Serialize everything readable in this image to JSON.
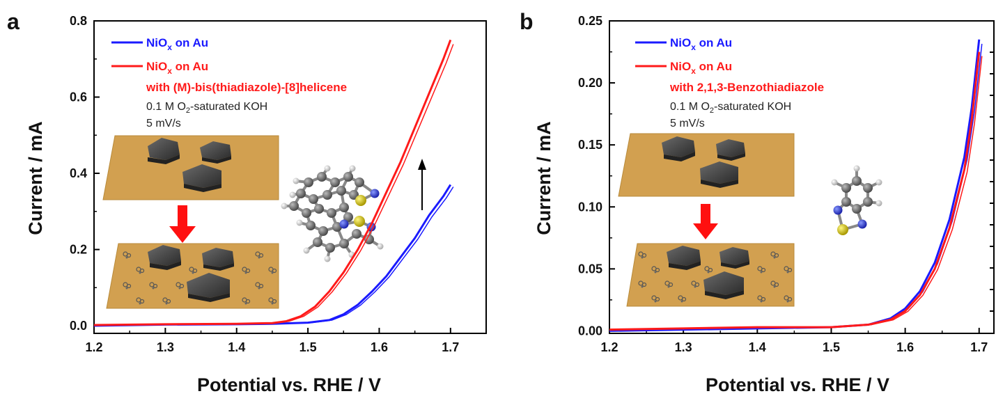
{
  "chart_data": [
    {
      "panel_label": "a",
      "type": "line",
      "xlabel": "Potential vs. RHE / V",
      "ylabel": "Current / mA",
      "xlim": [
        1.2,
        1.75
      ],
      "ylim": [
        -0.02,
        0.8
      ],
      "xticks": [
        "1.2",
        "1.3",
        "1.4",
        "1.5",
        "1.6",
        "1.7"
      ],
      "yticks": [
        "0.0",
        "0.2",
        "0.4",
        "0.6",
        "0.8"
      ],
      "legend_position": "top-left",
      "series": [
        {
          "name": "NiOx on Au",
          "color": "#1a1aff",
          "x": [
            1.2,
            1.3,
            1.4,
            1.45,
            1.5,
            1.53,
            1.55,
            1.57,
            1.59,
            1.61,
            1.63,
            1.65,
            1.67,
            1.69,
            1.7
          ],
          "y": [
            0.0,
            0.003,
            0.004,
            0.005,
            0.008,
            0.015,
            0.03,
            0.055,
            0.09,
            0.13,
            0.18,
            0.23,
            0.29,
            0.34,
            0.37
          ]
        },
        {
          "name": "NiOx on Au with (M)-bis(thiadiazole)-[8]helicene",
          "color": "#ff1a1a",
          "x": [
            1.2,
            1.3,
            1.4,
            1.45,
            1.47,
            1.49,
            1.51,
            1.53,
            1.55,
            1.57,
            1.59,
            1.61,
            1.63,
            1.65,
            1.67,
            1.69,
            1.7
          ],
          "y": [
            0.002,
            0.004,
            0.005,
            0.007,
            0.012,
            0.025,
            0.05,
            0.09,
            0.14,
            0.2,
            0.27,
            0.35,
            0.43,
            0.52,
            0.61,
            0.7,
            0.75
          ]
        }
      ],
      "legend": [
        {
          "main": "NiO",
          "sub": "x",
          "rest": " on Au",
          "color": "#1a1aff"
        },
        {
          "main": "NiO",
          "sub": "x",
          "rest": " on Au",
          "color": "#ff1a1a"
        }
      ],
      "legend_extra": "with (M)-bis(thiadiazole)-[8]helicene",
      "conditions": {
        "pre": "0.1 M O",
        "sub": "2",
        "post": "-saturated KOH"
      },
      "scan_rate": "5 mV/s"
    },
    {
      "panel_label": "b",
      "type": "line",
      "xlabel": "Potential vs. RHE / V",
      "ylabel": "Current / mA",
      "xlim": [
        1.2,
        1.72
      ],
      "ylim": [
        -0.002,
        0.25
      ],
      "xticks": [
        "1.2",
        "1.3",
        "1.4",
        "1.5",
        "1.6",
        "1.7"
      ],
      "yticks": [
        "0.00",
        "0.05",
        "0.10",
        "0.15",
        "0.20",
        "0.25"
      ],
      "legend_position": "top-left",
      "series": [
        {
          "name": "NiOx on Au",
          "color": "#1a1aff",
          "x": [
            1.2,
            1.3,
            1.4,
            1.5,
            1.55,
            1.58,
            1.6,
            1.62,
            1.64,
            1.66,
            1.68,
            1.69,
            1.7
          ],
          "y": [
            0.0,
            0.001,
            0.002,
            0.003,
            0.005,
            0.01,
            0.018,
            0.032,
            0.055,
            0.09,
            0.14,
            0.18,
            0.235
          ]
        },
        {
          "name": "NiOx on Au with 2,1,3-Benzothiadiazole",
          "color": "#ff1a1a",
          "x": [
            1.2,
            1.3,
            1.4,
            1.5,
            1.55,
            1.58,
            1.6,
            1.62,
            1.64,
            1.66,
            1.68,
            1.69,
            1.7
          ],
          "y": [
            0.001,
            0.002,
            0.003,
            0.003,
            0.005,
            0.009,
            0.016,
            0.029,
            0.05,
            0.083,
            0.13,
            0.17,
            0.225
          ]
        }
      ],
      "legend": [
        {
          "main": "NiO",
          "sub": "x",
          "rest": " on Au",
          "color": "#1a1aff"
        },
        {
          "main": "NiO",
          "sub": "x",
          "rest": " on Au",
          "color": "#ff1a1a"
        }
      ],
      "legend_extra": "with 2,1,3-Benzothiadiazole",
      "conditions": {
        "pre": "0.1 M O",
        "sub": "2",
        "post": "-saturated KOH"
      },
      "scan_rate": "5 mV/s"
    }
  ],
  "colors": {
    "substrate": "#d2a050",
    "particle": "#3a3a3a",
    "arrow": "#ff1010",
    "carbon": "#666666",
    "nitrogen": "#2233cc",
    "sulfur": "#d6c800",
    "hydrogen": "#eeeeee"
  }
}
